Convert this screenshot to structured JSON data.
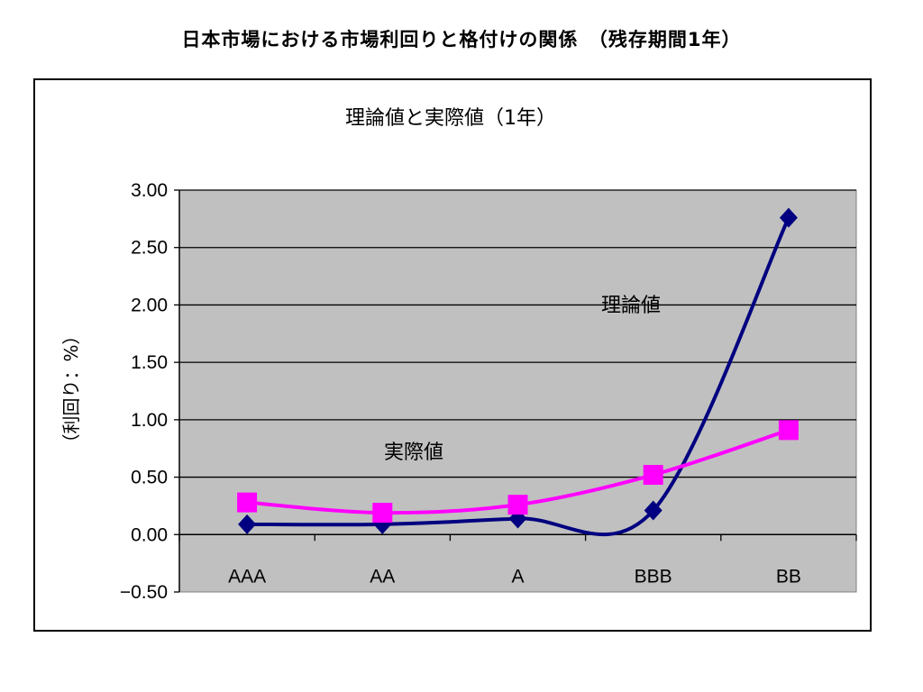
{
  "page_title": "日本市場における市場利回りと格付けの関係　（残存期間1年）",
  "chart_data": {
    "type": "line",
    "title": "理論値と実際値（1年）",
    "ylabel": "（利回り：%）",
    "xlabel": "",
    "categories": [
      "AAA",
      "AA",
      "A",
      "BBB",
      "BB"
    ],
    "ylim": [
      -0.5,
      3.0
    ],
    "yticks": [
      "3.00",
      "2.50",
      "2.00",
      "1.50",
      "1.00",
      "0.50",
      "0.00",
      "−0.50"
    ],
    "ytick_values": [
      3.0,
      2.5,
      2.0,
      1.5,
      1.0,
      0.5,
      0.0,
      -0.5
    ],
    "grid": true,
    "legend": "none",
    "series": [
      {
        "name": "理論値",
        "values": [
          0.09,
          0.09,
          0.14,
          0.21,
          2.76
        ],
        "color": "#000080",
        "marker": "diamond"
      },
      {
        "name": "実際値",
        "values": [
          0.28,
          0.19,
          0.26,
          0.52,
          0.91
        ],
        "color": "#ff00ff",
        "marker": "square"
      }
    ],
    "plot_background": "#c0c0c0"
  }
}
